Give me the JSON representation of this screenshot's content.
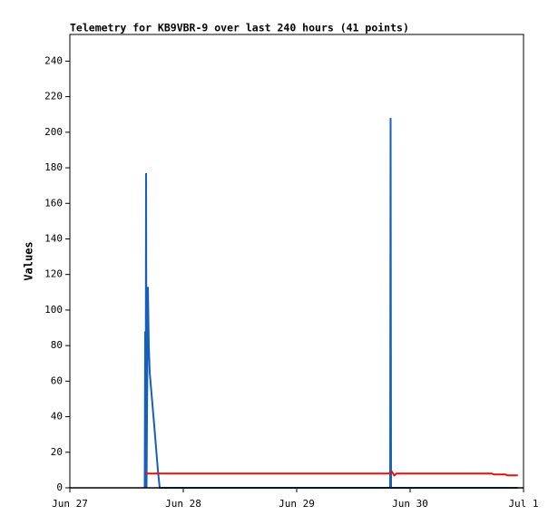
{
  "chart_data": {
    "type": "line",
    "title": "Telemetry for KB9VBR-9 over last 240 hours (41 points)",
    "y_label": "Values",
    "xlim": [
      0,
      4
    ],
    "xticks": [
      {
        "value": 0,
        "label": "Jun 27"
      },
      {
        "value": 1,
        "label": "Jun 28"
      },
      {
        "value": 2,
        "label": "Jun 29"
      },
      {
        "value": 3,
        "label": "Jun 30"
      },
      {
        "value": 4,
        "label": "Jul 1"
      }
    ],
    "ylim": [
      0,
      255
    ],
    "yticks": [
      0,
      20,
      40,
      60,
      80,
      100,
      120,
      140,
      160,
      180,
      200,
      220,
      240
    ],
    "series": [
      {
        "color": "#1560bd",
        "x": [
          0.66,
          0.664,
          0.668,
          0.672,
          0.676,
          0.688,
          0.696,
          0.704,
          0.744,
          0.776,
          0.792,
          2.824,
          2.828,
          2.832,
          3.95
        ],
        "values": [
          0,
          88,
          0,
          177,
          0,
          113,
          80,
          65,
          35,
          10,
          0,
          0,
          208,
          0,
          0
        ]
      },
      {
        "color": "#e8100f",
        "x": [
          0.664,
          2.82,
          2.84,
          2.86,
          2.88,
          3.72,
          3.74,
          3.84,
          3.86,
          3.95
        ],
        "values": [
          8,
          8,
          9,
          7,
          8,
          8,
          7.5,
          7.5,
          7,
          7
        ]
      }
    ]
  }
}
